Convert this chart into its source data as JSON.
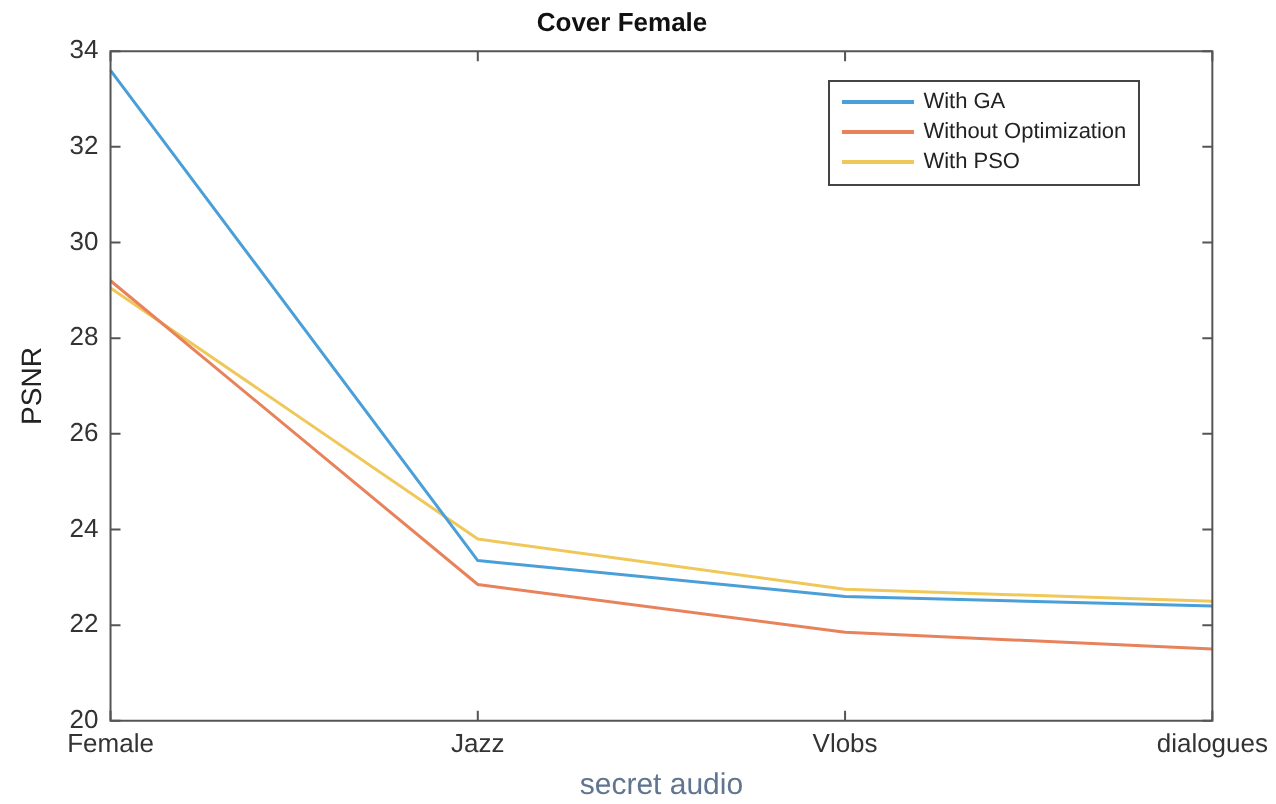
{
  "chart_data": {
    "type": "line",
    "title": "Cover Female",
    "xlabel": "secret audio",
    "ylabel": "PSNR",
    "categories": [
      "Female",
      "Jazz",
      "Vlobs",
      "dialogues"
    ],
    "series": [
      {
        "name": "With GA",
        "color": "#4a9fd8",
        "values": [
          33.6,
          23.35,
          22.6,
          22.4
        ]
      },
      {
        "name": "Without Optimization",
        "color": "#e8825a",
        "values": [
          29.2,
          22.85,
          21.85,
          21.5
        ]
      },
      {
        "name": "With PSO",
        "color": "#f0c85a",
        "values": [
          29.05,
          23.8,
          22.75,
          22.5
        ]
      }
    ],
    "ylim": [
      20,
      34
    ],
    "yticks": [
      20,
      22,
      24,
      26,
      28,
      30,
      32,
      34
    ],
    "grid": false,
    "legend": "top right",
    "marker": "none",
    "line_style": "solid"
  }
}
